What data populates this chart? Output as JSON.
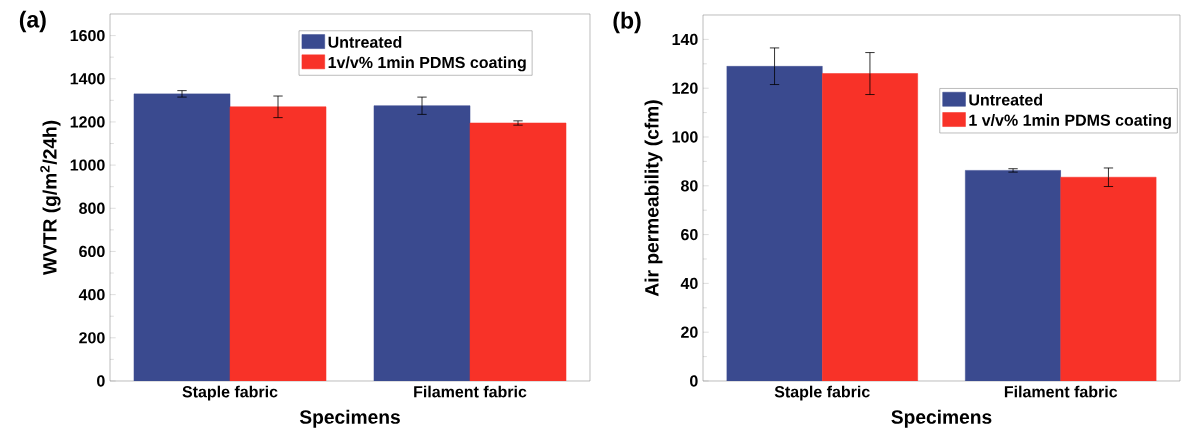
{
  "chart_data": [
    {
      "type": "bar",
      "title": "(a)",
      "xlabel": "Specimens",
      "ylabel": "WVTR (g/m$^{2}$/24h)",
      "categories": [
        "Staple fabric",
        "Filament fabric"
      ],
      "series": [
        {
          "name": "Untreated",
          "color": "#3a4a8f",
          "values": [
            1330,
            1275
          ],
          "errors": [
            15,
            40
          ]
        },
        {
          "name": "1v/v% 1min PDMS coating",
          "color": "#f83228",
          "values": [
            1270,
            1195
          ],
          "errors": [
            50,
            10
          ]
        }
      ],
      "ylim": [
        0,
        1700
      ],
      "yticks": [
        0,
        200,
        400,
        600,
        800,
        1000,
        1200,
        1400,
        1600
      ],
      "legend": "top right"
    },
    {
      "type": "bar",
      "title": "(b)",
      "xlabel": "Specimens",
      "ylabel": "Air permeability (cfm)",
      "categories": [
        "Staple fabric",
        "Filament fabric"
      ],
      "series": [
        {
          "name": "Untreated",
          "color": "#3a4a8f",
          "values": [
            129,
            86.3
          ],
          "errors": [
            7.5,
            0.7
          ]
        },
        {
          "name": "1 v/v% 1min PDMS coating",
          "color": "#f83228",
          "values": [
            126,
            83.5
          ],
          "errors": [
            8.6,
            3.8
          ]
        }
      ],
      "ylim": [
        0,
        150
      ],
      "yticks": [
        0,
        20,
        40,
        60,
        80,
        100,
        120,
        140
      ],
      "legend": "right"
    }
  ]
}
